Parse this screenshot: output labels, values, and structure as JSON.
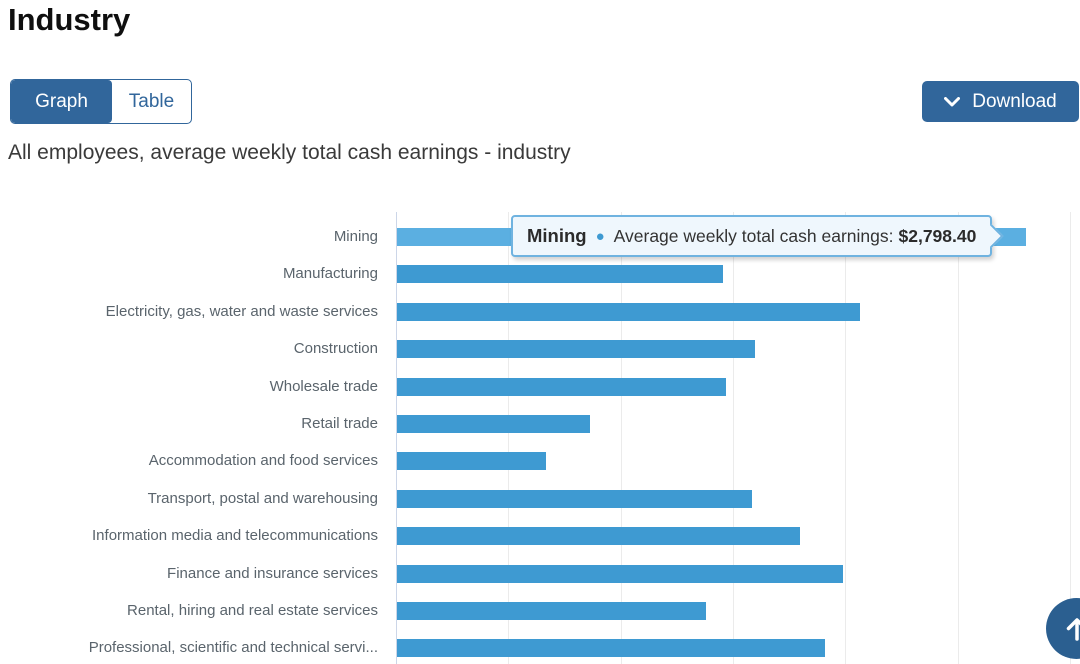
{
  "page": {
    "title": "Industry"
  },
  "toolbar": {
    "graph_tab_label": "Graph",
    "table_tab_label": "Table",
    "active_tab": "Graph",
    "download_label": "Download"
  },
  "colors": {
    "accent_blue": "#31669b",
    "bar_blue": "#3e9ad2",
    "bar_hover_blue": "#5bafe1",
    "tooltip_border": "#6fb3e0",
    "tooltip_bg": "#eff7fd",
    "back_to_top_blue": "#2b5f90",
    "label_gray": "#5a646c"
  },
  "chart_data": {
    "type": "bar",
    "orientation": "horizontal",
    "title": "All employees, average weekly total cash earnings - industry",
    "categories": [
      "Mining",
      "Manufacturing",
      "Electricity, gas, water and waste services",
      "Construction",
      "Wholesale trade",
      "Retail trade",
      "Accommodation and food services",
      "Transport, postal and warehousing",
      "Information media and telecommunications",
      "Finance and insurance services",
      "Rental, hiring and real estate services",
      "Professional, scientific and technical servi..."
    ],
    "series": [
      {
        "name": "Average weekly total cash earnings",
        "values": [
          2798.4,
          1452,
          2060,
          1594,
          1465,
          859,
          663,
          1581,
          1794,
          1985,
          1376,
          1906
        ]
      }
    ],
    "value_unit": "$ per week",
    "xlabel": "",
    "ylabel": "",
    "x_axis": {
      "min": 0,
      "visible_max": 3000,
      "tick_interval": 500,
      "gridlines": true,
      "tick_labels_visible": false
    },
    "legend": "none",
    "hovered_index": 0,
    "tooltip": {
      "category": "Mining",
      "series_label": "Average weekly total cash earnings:",
      "value_label": "$2,798.40"
    }
  }
}
